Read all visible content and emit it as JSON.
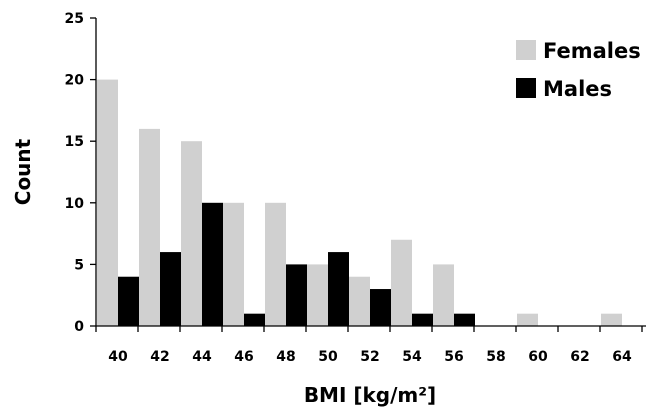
{
  "chart_data": {
    "type": "bar",
    "xlabel": "BMI [kg/m²]",
    "ylabel": "Count",
    "ylim": [
      0,
      25
    ],
    "yticks": [
      0,
      5,
      10,
      15,
      20,
      25
    ],
    "grid": false,
    "legend_position": "top-right",
    "categories": [
      "40",
      "42",
      "44",
      "46",
      "48",
      "50",
      "52",
      "54",
      "56",
      "58",
      "60",
      "62",
      "64"
    ],
    "series": [
      {
        "name": "Females",
        "color": "#d0d0d0",
        "values": [
          20,
          16,
          15,
          10,
          10,
          5,
          4,
          7,
          5,
          0,
          1,
          0,
          1
        ]
      },
      {
        "name": "Males",
        "color": "#000000",
        "values": [
          4,
          6,
          10,
          1,
          5,
          6,
          3,
          1,
          1,
          0,
          0,
          0,
          0
        ]
      }
    ]
  }
}
